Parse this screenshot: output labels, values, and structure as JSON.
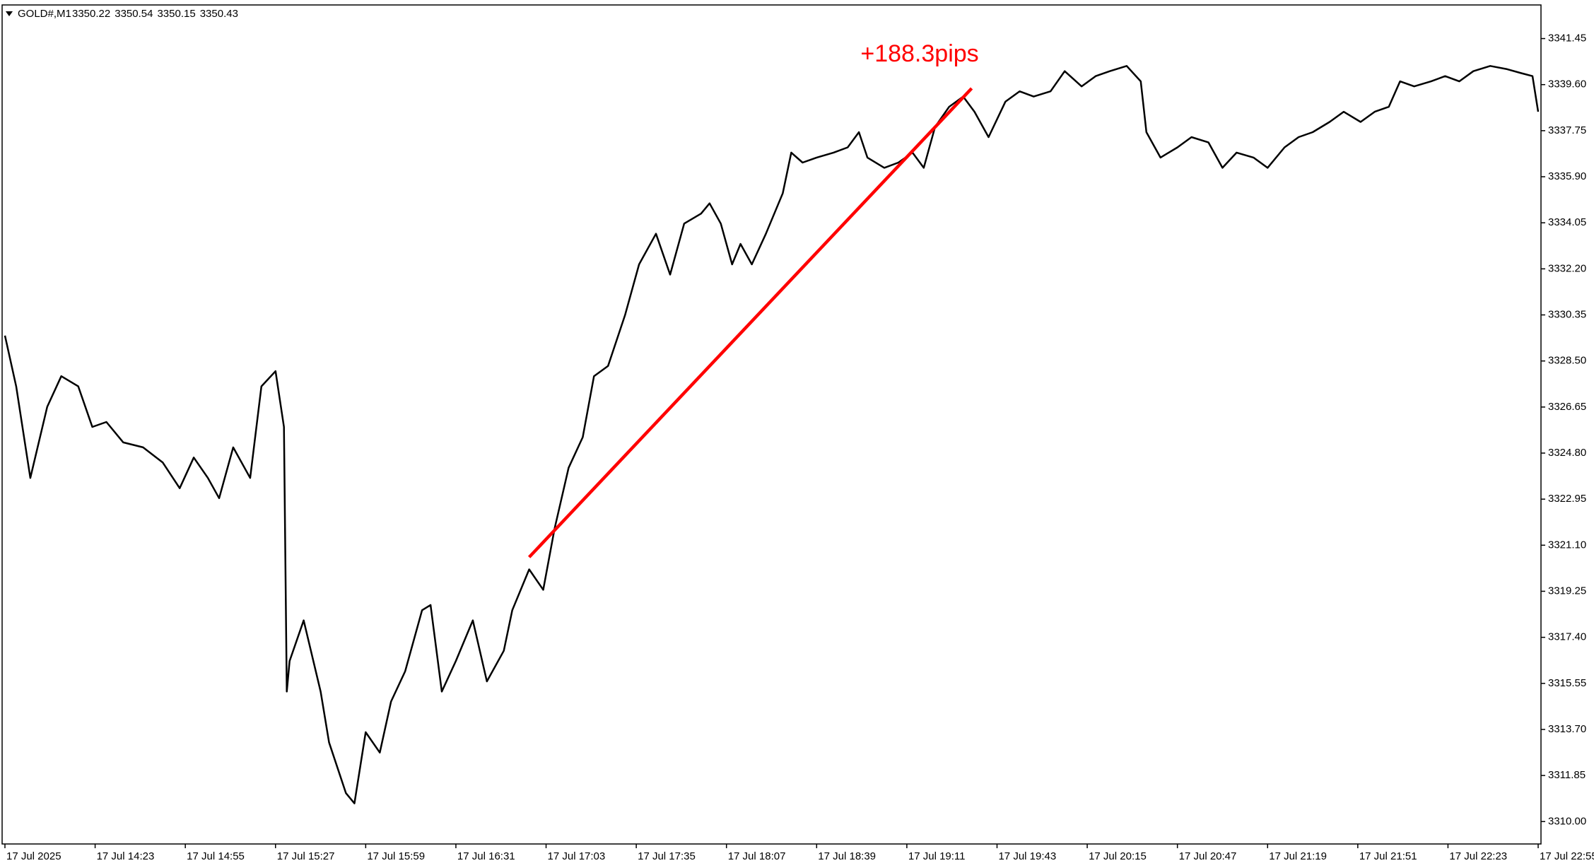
{
  "chart_data": {
    "type": "line",
    "title": "GOLD#,M1",
    "header_values": [
      3350.22,
      3350.54,
      3350.15,
      3350.43
    ],
    "color": "#000000",
    "x": [
      0,
      4,
      9,
      15,
      20,
      26,
      31,
      36,
      42,
      49,
      56,
      62,
      67,
      72,
      76,
      81,
      87,
      91,
      96,
      99,
      100,
      101,
      106,
      112,
      115,
      121,
      124,
      128,
      133,
      137,
      142,
      148,
      151,
      155,
      160,
      166,
      171,
      177,
      180,
      186,
      191,
      195,
      200,
      205,
      209,
      214,
      220,
      225,
      231,
      236,
      241,
      247,
      250,
      254,
      258,
      261,
      265,
      270,
      276,
      279,
      283,
      288,
      294,
      299,
      303,
      306,
      312,
      317,
      322,
      326,
      330,
      335,
      340,
      344,
      349,
      355,
      360,
      365,
      371,
      376,
      382,
      387,
      392,
      398,
      403,
      405,
      410,
      416,
      421,
      427,
      432,
      437,
      443,
      448,
      454,
      459,
      464,
      470,
      475,
      481,
      486,
      491,
      495,
      500,
      506,
      511,
      516,
      521,
      527,
      533,
      538,
      542,
      544
    ],
    "values": [
      3329.52,
      3327.48,
      3323.8,
      3326.66,
      3327.89,
      3327.48,
      3325.85,
      3326.05,
      3325.23,
      3325.03,
      3324.42,
      3323.39,
      3324.62,
      3323.8,
      3322.99,
      3325.03,
      3323.8,
      3327.48,
      3328.09,
      3325.85,
      3315.22,
      3316.45,
      3318.08,
      3315.22,
      3313.18,
      3311.14,
      3310.73,
      3313.59,
      3312.77,
      3314.82,
      3316.04,
      3318.49,
      3318.7,
      3315.22,
      3316.45,
      3318.08,
      3315.63,
      3316.86,
      3318.49,
      3320.13,
      3319.31,
      3321.76,
      3324.21,
      3325.44,
      3327.89,
      3328.3,
      3330.34,
      3332.38,
      3333.61,
      3331.97,
      3334.02,
      3334.42,
      3334.83,
      3334.02,
      3332.38,
      3333.2,
      3332.38,
      3333.61,
      3335.24,
      3336.87,
      3336.47,
      3336.67,
      3336.87,
      3337.08,
      3337.69,
      3336.67,
      3336.26,
      3336.47,
      3336.87,
      3336.26,
      3337.9,
      3338.71,
      3339.12,
      3338.51,
      3337.49,
      3338.92,
      3339.33,
      3339.12,
      3339.33,
      3340.14,
      3339.53,
      3339.94,
      3340.14,
      3340.35,
      3339.73,
      3337.69,
      3336.67,
      3337.08,
      3337.49,
      3337.28,
      3336.26,
      3336.87,
      3336.67,
      3336.26,
      3337.08,
      3337.49,
      3337.69,
      3338.1,
      3338.51,
      3338.1,
      3338.51,
      3338.71,
      3339.73,
      3339.53,
      3339.73,
      3339.94,
      3339.73,
      3340.14,
      3340.35,
      3340.22,
      3340.06,
      3339.94,
      3338.51
    ],
    "xlim": [
      -1,
      545
    ],
    "xticks": [
      {
        "value": 0,
        "label": "17 Jul 2025"
      },
      {
        "value": 32,
        "label": "17 Jul 14:23"
      },
      {
        "value": 64,
        "label": "17 Jul 14:55"
      },
      {
        "value": 96,
        "label": "17 Jul 15:27"
      },
      {
        "value": 128,
        "label": "17 Jul 15:59"
      },
      {
        "value": 160,
        "label": "17 Jul 16:31"
      },
      {
        "value": 192,
        "label": "17 Jul 17:03"
      },
      {
        "value": 224,
        "label": "17 Jul 17:35"
      },
      {
        "value": 256,
        "label": "17 Jul 18:07"
      },
      {
        "value": 288,
        "label": "17 Jul 18:39"
      },
      {
        "value": 320,
        "label": "17 Jul 19:11"
      },
      {
        "value": 352,
        "label": "17 Jul 19:43"
      },
      {
        "value": 384,
        "label": "17 Jul 20:15"
      },
      {
        "value": 416,
        "label": "17 Jul 20:47"
      },
      {
        "value": 448,
        "label": "17 Jul 21:19"
      },
      {
        "value": 480,
        "label": "17 Jul 21:51"
      },
      {
        "value": 512,
        "label": "17 Jul 22:23"
      },
      {
        "value": 544,
        "label": "17 Jul 22:55"
      }
    ],
    "ylim": [
      3309.1,
      3342.8
    ],
    "yticks": [
      3341.45,
      {
        "value": 3339.6,
        "label": "3339.60"
      },
      3337.75,
      {
        "value": 3335.9,
        "label": "3335.90"
      },
      3334.05,
      {
        "value": 3332.2,
        "label": "3332.20"
      },
      3330.35,
      {
        "value": 3328.5,
        "label": "3328.50"
      },
      3326.65,
      {
        "value": 3324.8,
        "label": "3324.80"
      },
      3322.95,
      {
        "value": 3321.1,
        "label": "3321.10"
      },
      3319.25,
      {
        "value": 3317.4,
        "label": "3317.40"
      },
      3315.55,
      {
        "value": 3313.7,
        "label": "3313.70"
      },
      3311.85,
      {
        "value": 3310,
        "label": "3310.00"
      }
    ],
    "annotation": {
      "text": "+188.3pips",
      "color": "#ff0000",
      "x": [
        186,
        343
      ],
      "y": [
        3320.62,
        3339.45
      ]
    }
  }
}
